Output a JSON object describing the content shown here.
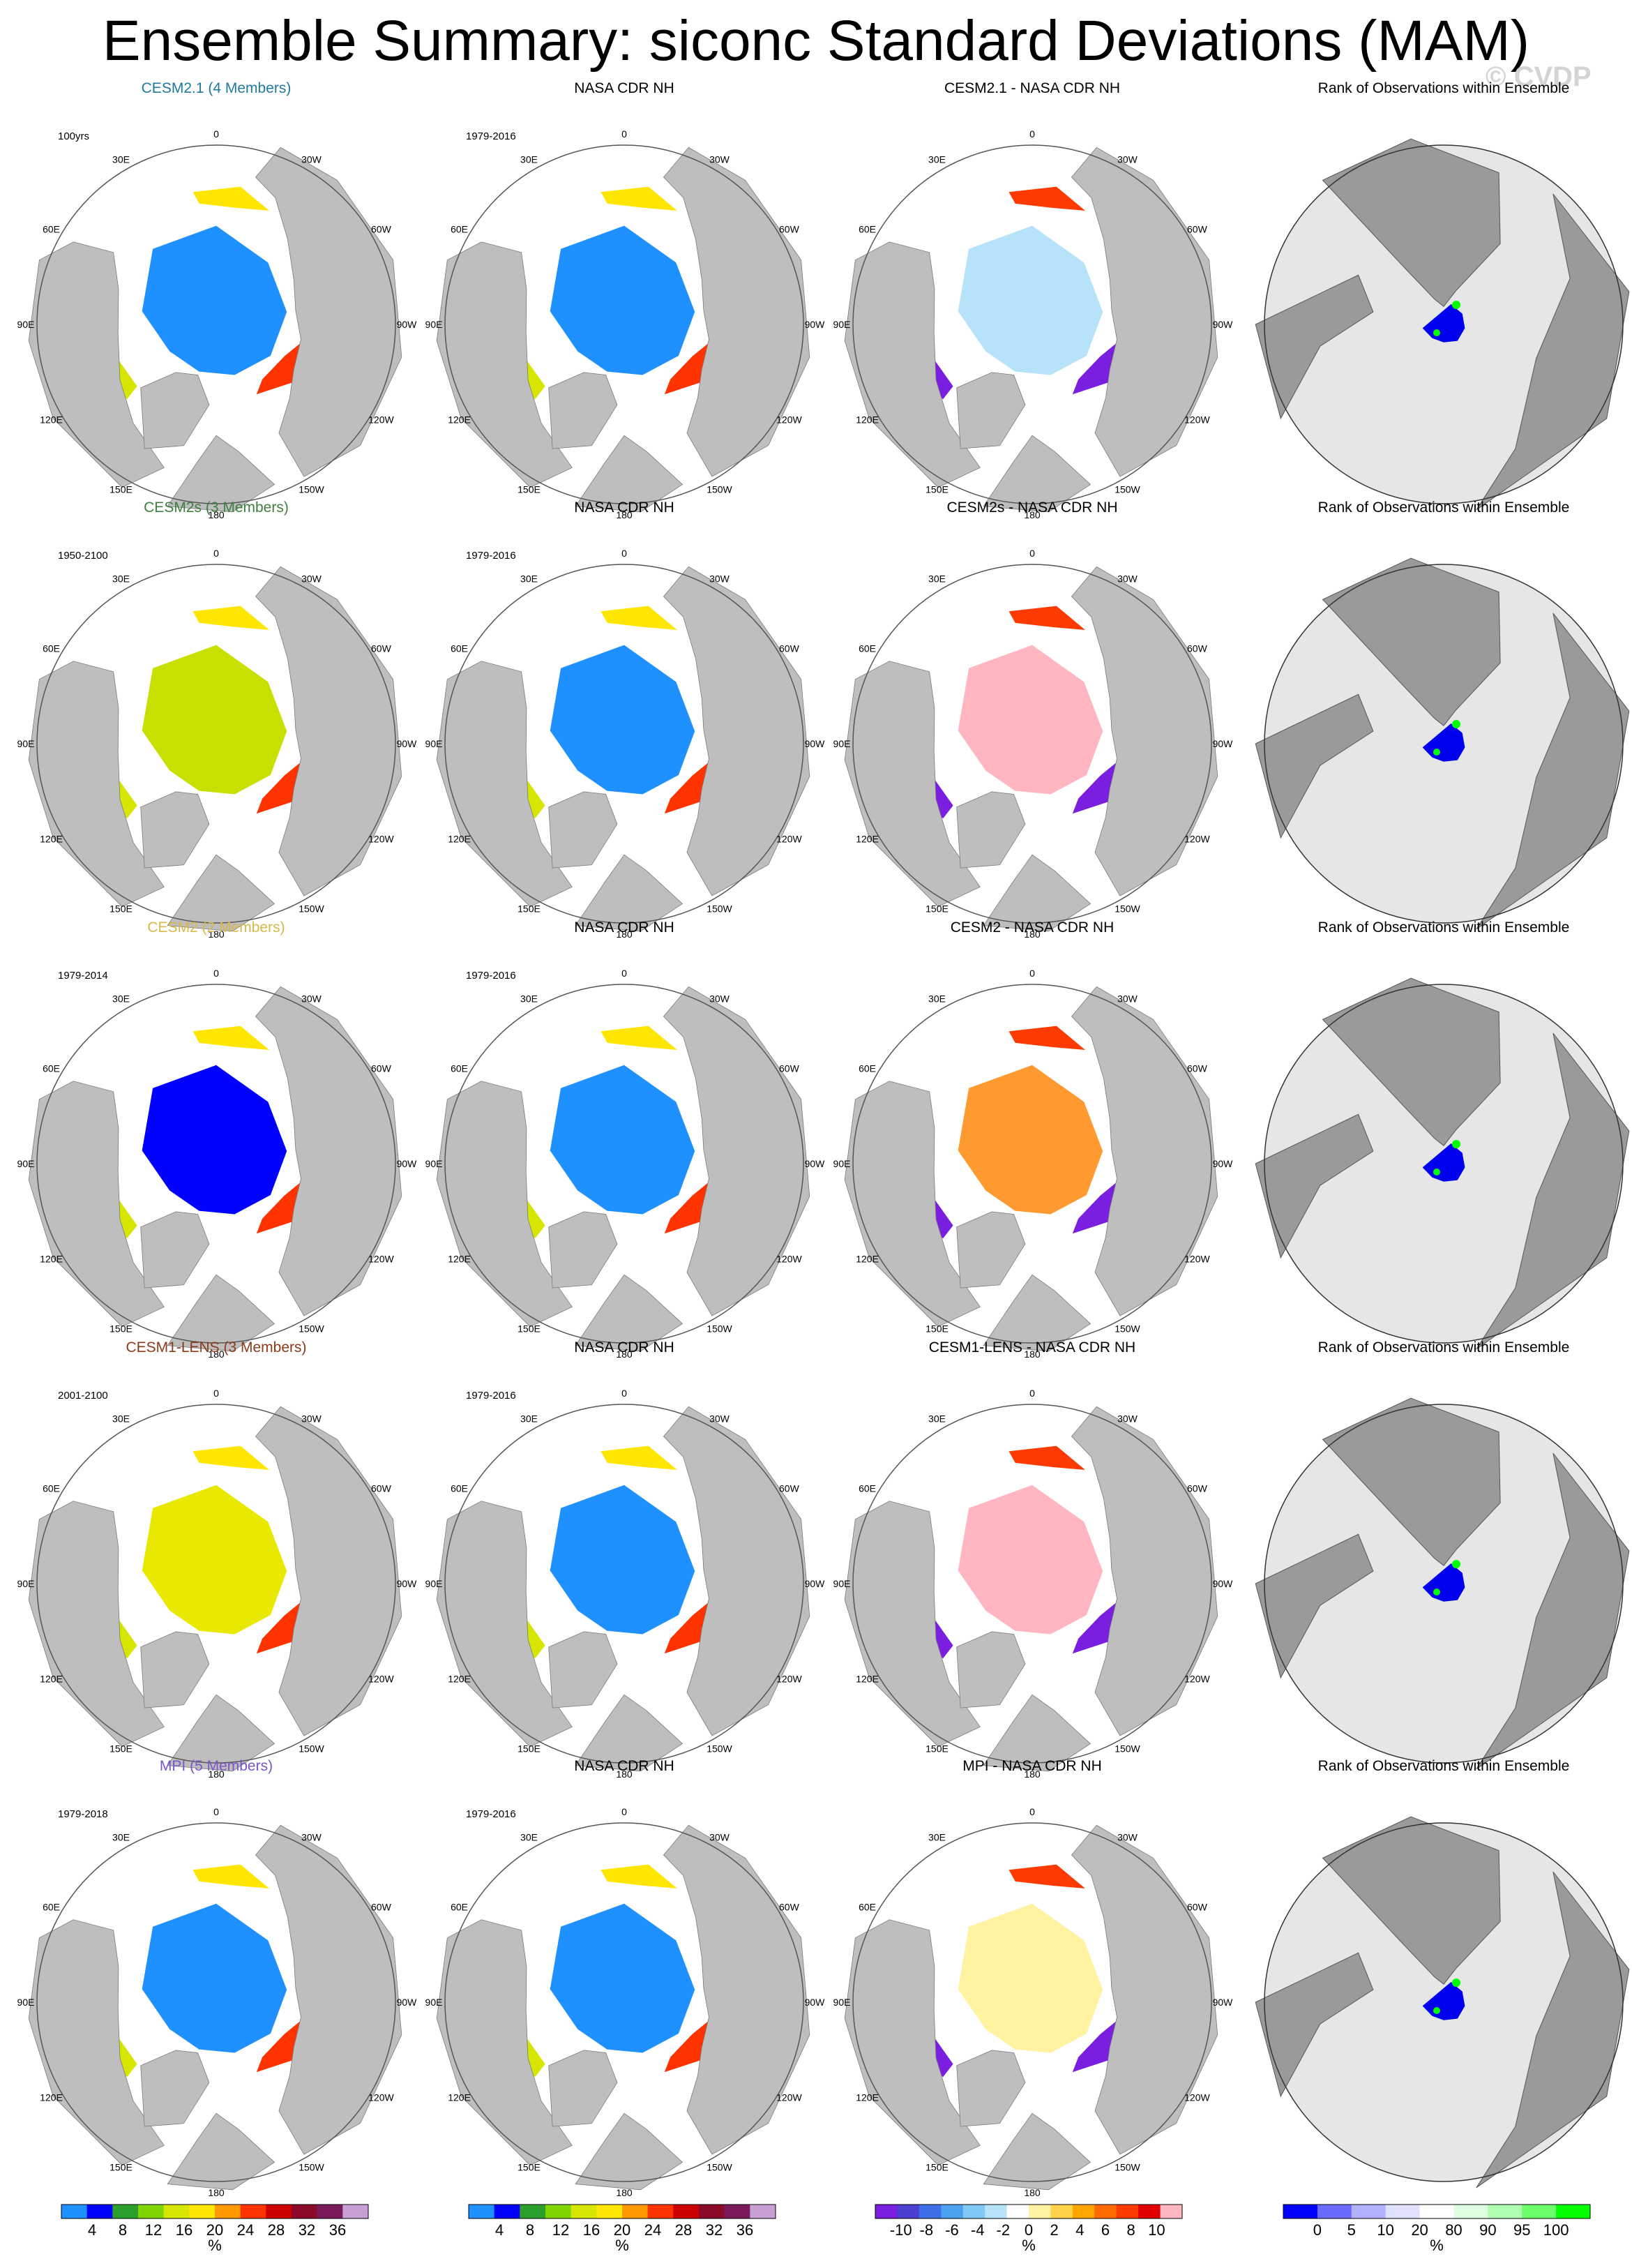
{
  "title": "Ensemble Summary: siconc Standard Deviations (MAM)",
  "watermark": "© CVDP",
  "longitude_labels": [
    "180",
    "150E",
    "120E",
    "90E",
    "60E",
    "30E",
    "0",
    "30W",
    "60W",
    "90W",
    "120W",
    "150W"
  ],
  "colors": {
    "ocean": "#ffffff",
    "land": "#bebebe",
    "rank_bg": "#e6e6e6",
    "coast": "#7a7a7a"
  },
  "rows": [
    {
      "model_title": "CESM2.1 (4 Members)",
      "model_color": "#1e7a9e",
      "model_period": "100yrs",
      "obs_title": "NASA CDR NH",
      "obs_period": "1979-2016",
      "diff_title": "CESM2.1 - NASA CDR NH",
      "rank_title": "Rank of Observations within Ensemble",
      "model_field": "mostly low variability (blue) interior, marginal ice bands",
      "diff_field": "light blue/yellow interior"
    },
    {
      "model_title": "CESM2s (3 Members)",
      "model_color": "#3f7f3f",
      "model_period": "1950-2100",
      "obs_title": "NASA CDR NH",
      "obs_period": "1979-2016",
      "diff_title": "CESM2s - NASA CDR NH",
      "rank_title": "Rank of Observations within Ensemble",
      "model_field": "green interior, high marginal variability",
      "diff_field": "pink interior"
    },
    {
      "model_title": "CESM2 (2 Members)",
      "model_color": "#d8b84a",
      "model_period": "1979-2014",
      "obs_title": "NASA CDR NH",
      "obs_period": "1979-2016",
      "diff_title": "CESM2 - NASA CDR NH",
      "rank_title": "Rank of Observations within Ensemble",
      "model_field": "dark blue interior",
      "diff_field": "orange interior"
    },
    {
      "model_title": "CESM1-LENS (3 Members)",
      "model_color": "#8b3a1a",
      "model_period": "2001-2100",
      "obs_title": "NASA CDR NH",
      "obs_period": "1979-2016",
      "diff_title": "CESM1-LENS - NASA CDR NH",
      "rank_title": "Rank of Observations within Ensemble",
      "model_field": "yellow interior",
      "diff_field": "pink interior"
    },
    {
      "model_title": "MPI (5 Members)",
      "model_color": "#7a56c8",
      "model_period": "1979-2018",
      "obs_title": "NASA CDR NH",
      "obs_period": "1979-2016",
      "diff_title": "MPI - NASA CDR NH",
      "rank_title": "Rank of Observations within Ensemble",
      "model_field": "light blue interior",
      "diff_field": "pale yellow interior"
    }
  ],
  "colorbars": [
    {
      "unit": "%",
      "labels": [
        "4",
        "8",
        "12",
        "16",
        "20",
        "24",
        "28",
        "32",
        "36"
      ],
      "colors": [
        "#1e90ff",
        "#0000ff",
        "#2ca02c",
        "#7fd400",
        "#d6e600",
        "#ffe600",
        "#ff9900",
        "#ff3300",
        "#cc0000",
        "#8b0a2a",
        "#7a1a5a",
        "#c8a0d6"
      ]
    },
    {
      "unit": "%",
      "labels": [
        "4",
        "8",
        "12",
        "16",
        "20",
        "24",
        "28",
        "32",
        "36"
      ],
      "colors": [
        "#1e90ff",
        "#0000ff",
        "#2ca02c",
        "#7fd400",
        "#d6e600",
        "#ffe600",
        "#ff9900",
        "#ff3300",
        "#cc0000",
        "#8b0a2a",
        "#7a1a5a",
        "#c8a0d6"
      ]
    },
    {
      "unit": "%",
      "labels": [
        "-10",
        "-8",
        "-6",
        "-4",
        "-2",
        "0",
        "2",
        "4",
        "6",
        "8",
        "10"
      ],
      "colors": [
        "#7a1fe0",
        "#4a3fd0",
        "#3d6ee8",
        "#4ca0f0",
        "#7fc8f8",
        "#b6e2fa",
        "#ffffff",
        "#fff2a0",
        "#ffd24a",
        "#ffa500",
        "#ff6a00",
        "#ff3a00",
        "#e00000",
        "#ffb6c1"
      ]
    },
    {
      "unit": "%",
      "labels": [
        "0",
        "5",
        "10",
        "20",
        "80",
        "90",
        "95",
        "100"
      ],
      "colors": [
        "#0000ff",
        "#6a6aff",
        "#b0b0ff",
        "#e0e0ff",
        "#ffffff",
        "#e0ffe0",
        "#b0ffb0",
        "#6aff6a",
        "#00ff00"
      ]
    }
  ]
}
